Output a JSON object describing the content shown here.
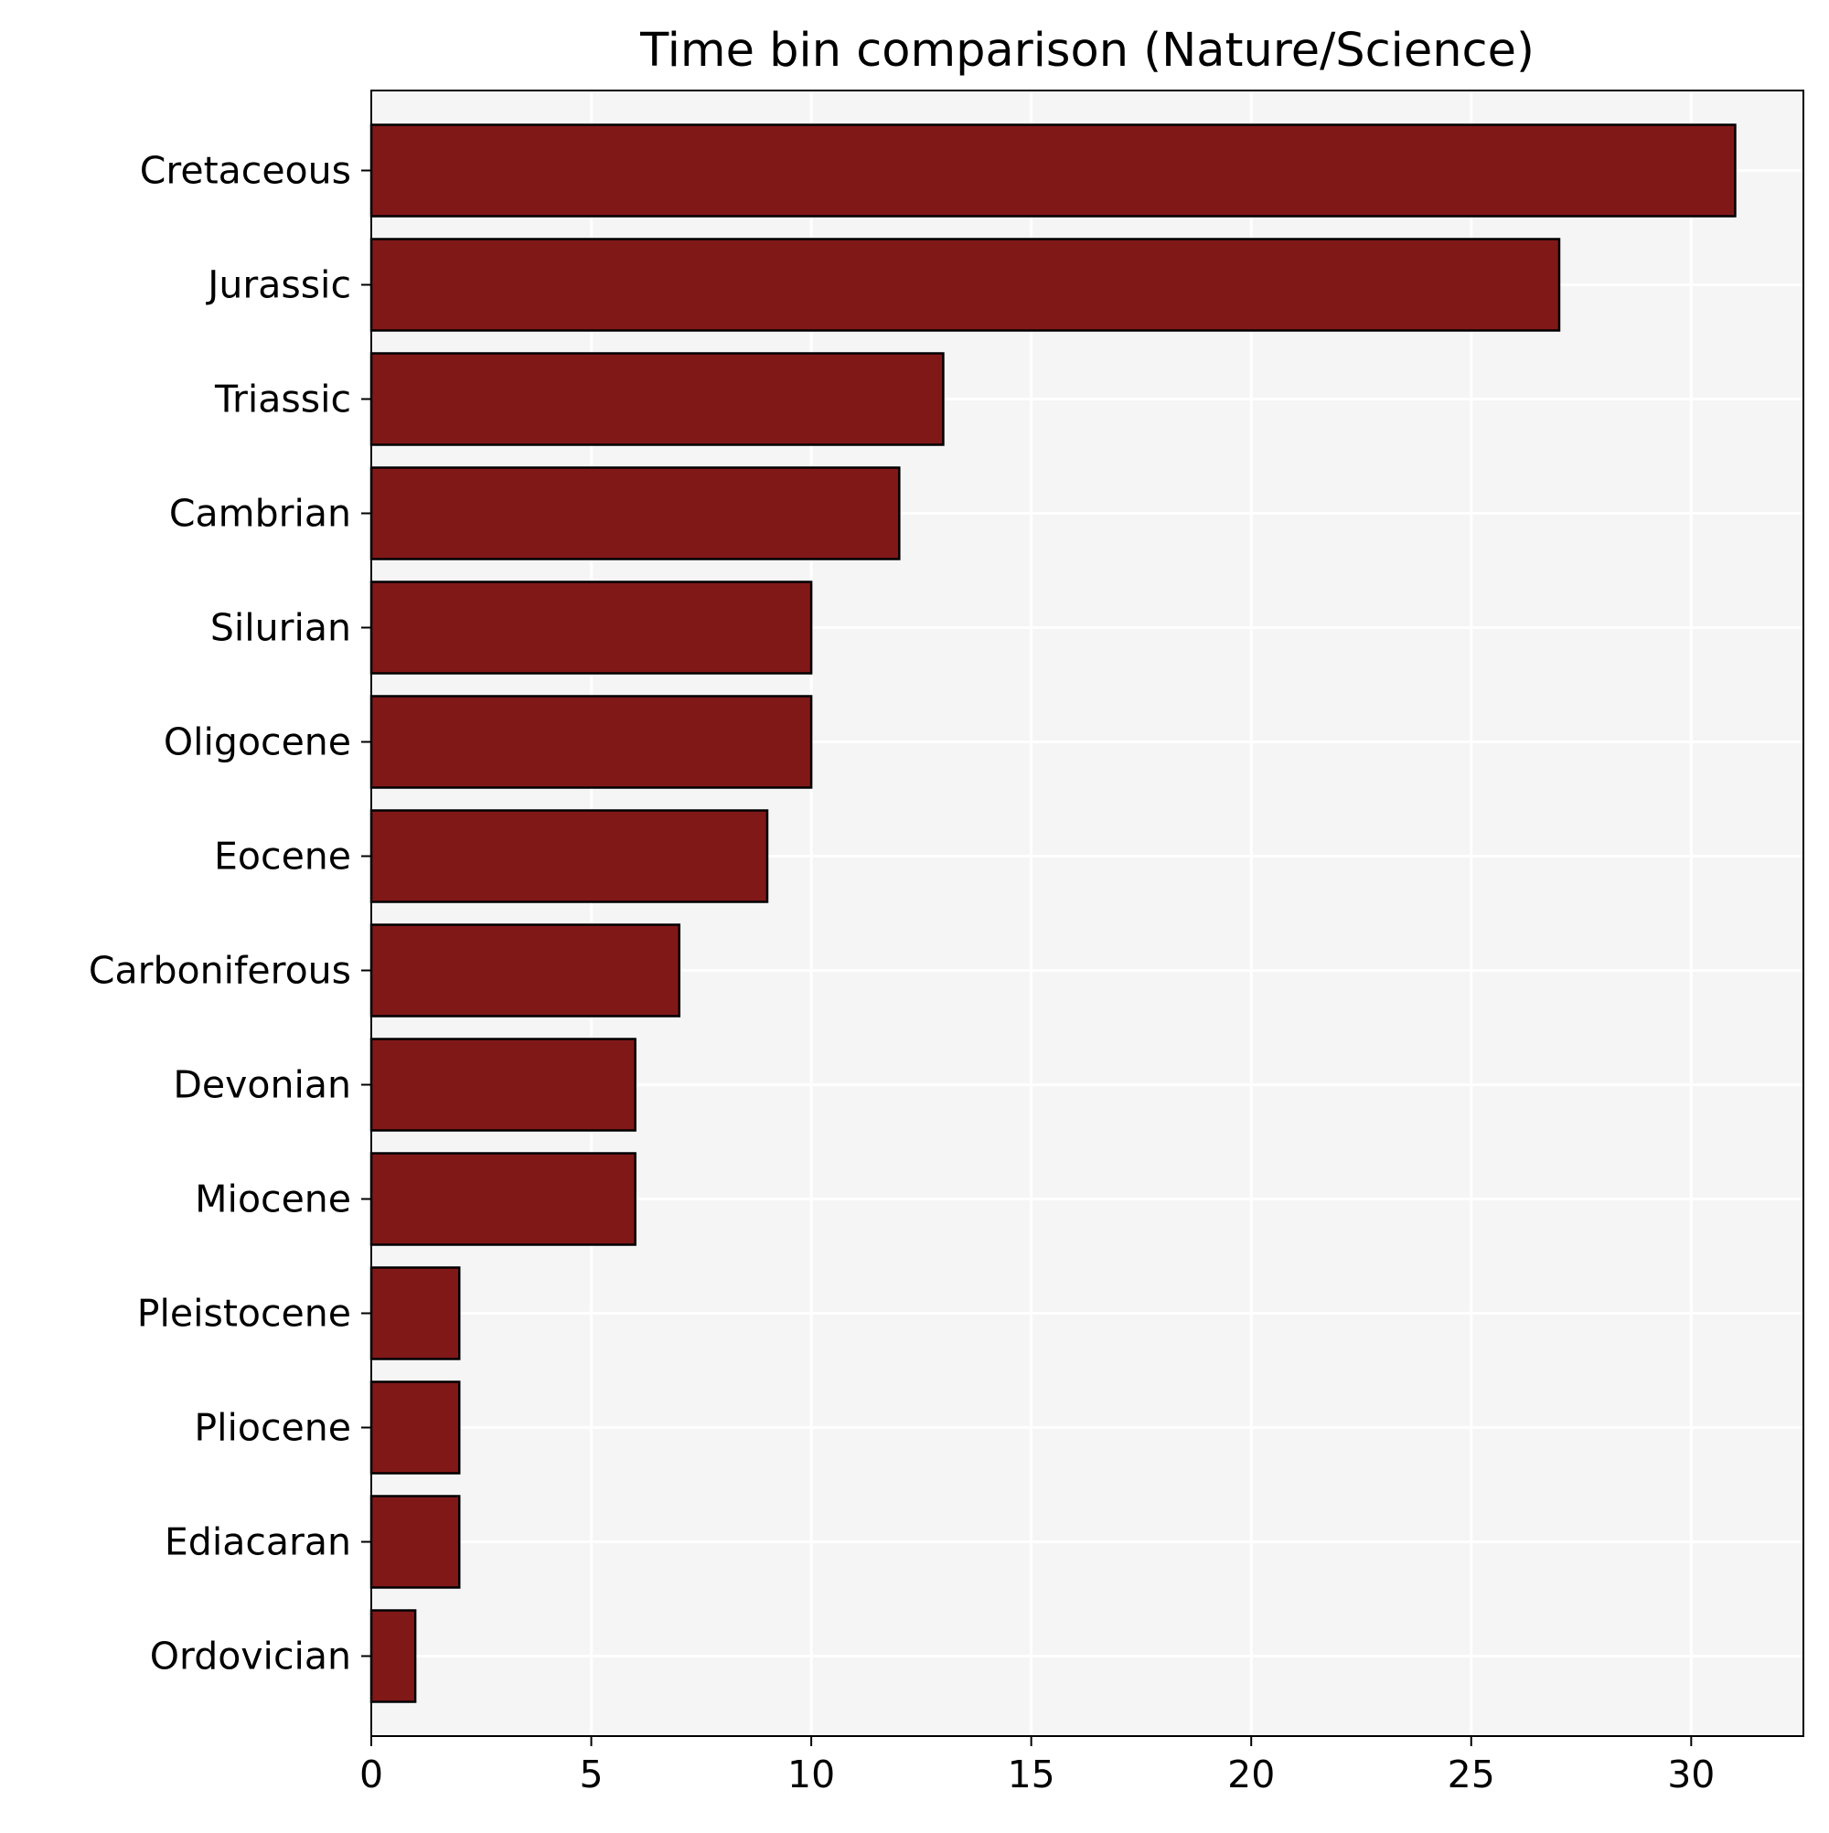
{
  "chart_data": {
    "type": "bar",
    "orientation": "horizontal",
    "title": "Time bin comparison (Nature/Science)",
    "xlabel": "",
    "ylabel": "",
    "categories": [
      "Cretaceous",
      "Jurassic",
      "Triassic",
      "Cambrian",
      "Silurian",
      "Oligocene",
      "Eocene",
      "Carboniferous",
      "Devonian",
      "Miocene",
      "Pleistocene",
      "Pliocene",
      "Ediacaran",
      "Ordovician"
    ],
    "values": [
      31,
      27,
      13,
      12,
      10,
      10,
      9,
      7,
      6,
      6,
      2,
      2,
      2,
      1
    ],
    "xlim": [
      0,
      32.55
    ],
    "xticks": [
      0,
      5,
      10,
      15,
      20,
      25,
      30
    ],
    "grid": true,
    "bar_color": "#811818",
    "edge_color": "#000000",
    "background_color": "#f5f5f5"
  }
}
